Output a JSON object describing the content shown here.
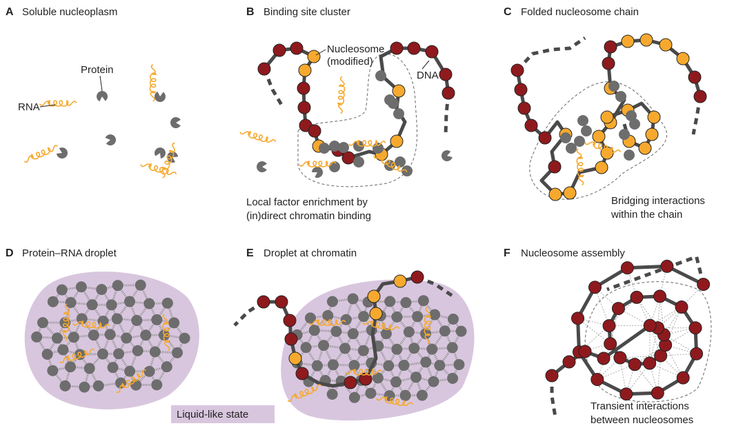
{
  "panels": [
    {
      "letter": "A",
      "title": "Soluble nucleoplasm",
      "labels": [
        "Protein",
        "RNA"
      ]
    },
    {
      "letter": "B",
      "title": "Binding site cluster",
      "labels": [
        "Nucleosome",
        "(modified)",
        "DNA",
        "Local factor enrichment by",
        "(in)direct chromatin binding"
      ]
    },
    {
      "letter": "C",
      "title": "Folded nucleosome chain",
      "labels": [
        "Bridging interactions",
        "within the chain"
      ]
    },
    {
      "letter": "D",
      "title": "Protein–RNA droplet"
    },
    {
      "letter": "E",
      "title": "Droplet at chromatin"
    },
    {
      "letter": "F",
      "title": "Nucleosome assembly",
      "labels": [
        "Transient interactions",
        "between nucleosomes"
      ]
    }
  ],
  "legend": {
    "label": "Liquid-like state"
  }
}
